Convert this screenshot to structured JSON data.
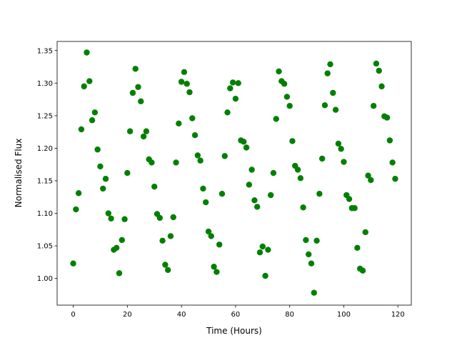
{
  "chart_data": {
    "type": "scatter",
    "x_label": "Time (Hours)",
    "y_label": "Normalised Flux",
    "xlim": [
      -5.95,
      124.95
    ],
    "ylim": [
      0.959,
      1.364
    ],
    "xticks": [
      0,
      20,
      40,
      60,
      80,
      100,
      120
    ],
    "yticks": [
      {
        "value": 1,
        "label": "1.00"
      },
      1.05,
      {
        "value": 1.1,
        "label": "1.10"
      },
      1.15,
      {
        "value": 1.2,
        "label": "1.20"
      },
      1.25,
      {
        "value": 1.3,
        "label": "1.30"
      },
      1.35
    ],
    "series": [
      {
        "color": "#008000",
        "x": [
          0,
          1,
          2,
          3,
          4,
          5,
          6,
          7,
          8,
          9,
          10,
          11,
          12,
          13,
          14,
          15,
          16,
          17,
          18,
          19,
          20,
          21,
          22,
          23,
          24,
          25,
          26,
          27,
          28,
          29,
          30,
          31,
          32,
          33,
          34,
          35,
          36,
          37,
          38,
          39,
          40,
          41,
          42,
          43,
          44,
          45,
          46,
          47,
          48,
          49,
          50,
          51,
          52,
          53,
          54,
          55,
          56,
          57,
          58,
          59,
          60,
          61,
          62,
          63,
          64,
          65,
          66,
          67,
          68,
          69,
          70,
          71,
          72,
          73,
          74,
          75,
          76,
          77,
          78,
          79,
          80,
          81,
          82,
          83,
          84,
          85,
          86,
          87,
          88,
          89,
          90,
          91,
          92,
          93,
          94,
          95,
          96,
          97,
          98,
          99,
          100,
          101,
          102,
          103,
          104,
          105,
          106,
          107,
          108,
          109,
          110,
          111,
          112,
          113,
          114,
          115,
          116,
          117,
          118,
          119
        ],
        "values": [
          1.023,
          1.106,
          1.131,
          1.229,
          1.295,
          1.347,
          1.303,
          1.243,
          1.255,
          1.198,
          1.172,
          1.138,
          1.153,
          1.1,
          1.092,
          1.044,
          1.047,
          1.008,
          1.059,
          1.091,
          1.162,
          1.226,
          1.285,
          1.322,
          1.294,
          1.272,
          1.218,
          1.226,
          1.183,
          1.178,
          1.141,
          1.099,
          1.093,
          1.058,
          1.021,
          1.013,
          1.065,
          1.094,
          1.178,
          1.238,
          1.302,
          1.317,
          1.299,
          1.286,
          1.246,
          1.22,
          1.189,
          1.181,
          1.138,
          1.117,
          1.072,
          1.065,
          1.018,
          1.01,
          1.052,
          1.13,
          1.188,
          1.255,
          1.292,
          1.301,
          1.276,
          1.3,
          1.212,
          1.21,
          1.201,
          1.144,
          1.167,
          1.12,
          1.11,
          1.04,
          1.049,
          1.004,
          1.044,
          1.128,
          1.162,
          1.245,
          1.318,
          1.303,
          1.299,
          1.279,
          1.265,
          1.211,
          1.173,
          1.167,
          1.154,
          1.109,
          1.059,
          1.037,
          1.023,
          0.978,
          1.058,
          1.13,
          1.184,
          1.266,
          1.315,
          1.329,
          1.285,
          1.259,
          1.207,
          1.199,
          1.179,
          1.128,
          1.122,
          1.108,
          1.108,
          1.047,
          1.015,
          1.012,
          1.071,
          1.158,
          1.151,
          1.265,
          1.33,
          1.319,
          1.295,
          1.249,
          1.247,
          1.212,
          1.178,
          1.153
        ]
      }
    ]
  }
}
